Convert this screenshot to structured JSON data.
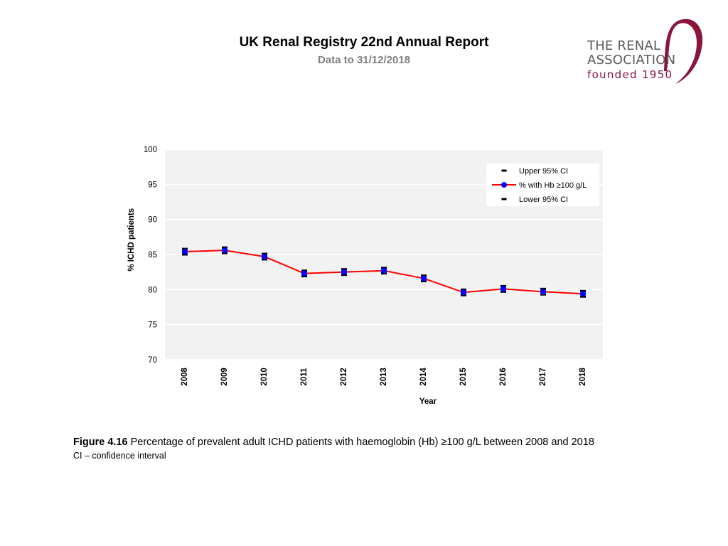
{
  "header": {
    "title": "UK Renal Registry 22nd Annual Report",
    "subtitle": "Data to 31/12/2018"
  },
  "logo": {
    "line1": "THE RENAL",
    "line2": "ASSOCIATION",
    "line3": "founded 1950"
  },
  "colors": {
    "plot_background": "#f2f2f2",
    "gridline": "#ffffff",
    "series_line": "#ff0000",
    "series_marker": "#0000ff",
    "error_bar": "#000000",
    "logo_accent": "#8a1538"
  },
  "chart_data": {
    "type": "line",
    "title": "",
    "xlabel": "Year",
    "ylabel": "% ICHD patients",
    "ylim": [
      70,
      100
    ],
    "yticks": [
      100,
      95,
      90,
      85,
      80,
      75,
      70
    ],
    "grid": true,
    "legend_position": "top-right",
    "legend": [
      "Upper 95% CI",
      "% with Hb ≥100 g/L",
      "Lower 95% CI"
    ],
    "categories": [
      "2008",
      "2009",
      "2010",
      "2011",
      "2012",
      "2013",
      "2014",
      "2015",
      "2016",
      "2017",
      "2018"
    ],
    "series": [
      {
        "name": "% with Hb ≥100 g/L",
        "values": [
          85.4,
          85.6,
          84.7,
          82.3,
          82.5,
          82.7,
          81.6,
          79.6,
          80.1,
          79.7,
          79.4
        ]
      },
      {
        "name": "Upper 95% CI",
        "values": [
          85.8,
          86.0,
          85.1,
          82.7,
          82.9,
          83.1,
          82.0,
          80.0,
          80.5,
          80.1,
          79.8
        ]
      },
      {
        "name": "Lower 95% CI",
        "values": [
          85.0,
          85.2,
          84.3,
          81.9,
          82.1,
          82.3,
          81.2,
          79.2,
          79.7,
          79.3,
          79.0
        ]
      }
    ]
  },
  "caption": {
    "label": "Figure 4.16",
    "text": " Percentage of prevalent adult ICHD patients with haemoglobin (Hb) ≥100 g/L between 2008 and 2018",
    "note": "CI – confidence interval"
  }
}
